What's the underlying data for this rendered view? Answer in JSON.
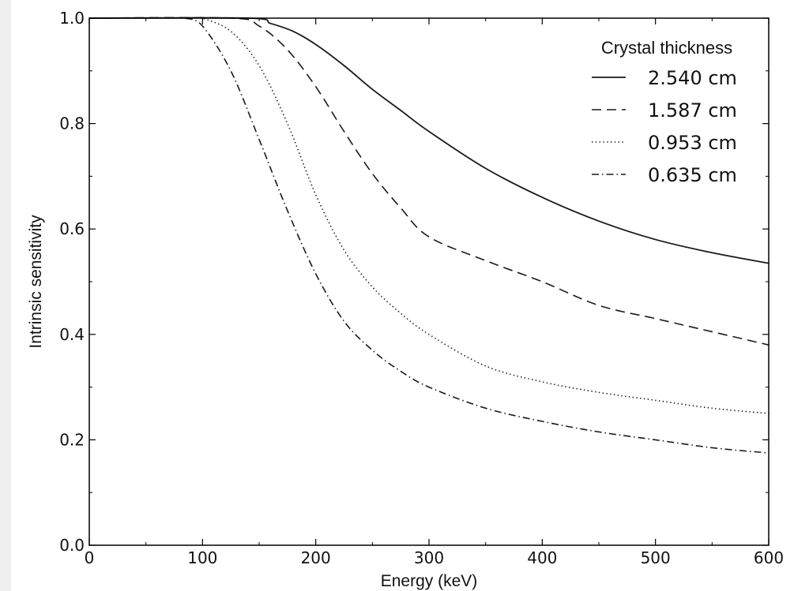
{
  "chart_data": {
    "type": "line",
    "title": "",
    "xlabel": "Energy (keV)",
    "ylabel": "Intrinsic sensitivity",
    "xlim": [
      0,
      600
    ],
    "ylim": [
      0.0,
      1.0
    ],
    "x_ticks": [
      "0",
      "100",
      "200",
      "300",
      "400",
      "500",
      "600"
    ],
    "y_ticks": [
      "0.0",
      "0.2",
      "0.4",
      "0.6",
      "0.8",
      "1.0"
    ],
    "grid": false,
    "legend": {
      "title": "Crystal thickness",
      "placement": "top-right"
    },
    "series": [
      {
        "name": "2.540 cm",
        "style": "solid",
        "x": [
          0,
          140,
          160,
          180,
          200,
          225,
          250,
          275,
          300,
          350,
          400,
          450,
          500,
          550,
          600
        ],
        "y": [
          1.0,
          1.0,
          0.99,
          0.975,
          0.95,
          0.91,
          0.865,
          0.825,
          0.785,
          0.715,
          0.66,
          0.615,
          0.58,
          0.555,
          0.535
        ]
      },
      {
        "name": "1.587 cm",
        "style": "dashed",
        "x": [
          0,
          125,
          150,
          175,
          200,
          225,
          250,
          275,
          300,
          350,
          400,
          450,
          500,
          550,
          600
        ],
        "y": [
          1.0,
          1.0,
          0.985,
          0.94,
          0.87,
          0.785,
          0.705,
          0.64,
          0.585,
          0.54,
          0.5,
          0.455,
          0.43,
          0.405,
          0.38
        ]
      },
      {
        "name": "0.953 cm",
        "style": "dotted",
        "x": [
          95,
          100,
          125,
          150,
          175,
          200,
          225,
          250,
          275,
          300,
          350,
          400,
          450,
          500,
          550,
          600
        ],
        "y": [
          1.0,
          1.0,
          0.975,
          0.91,
          0.8,
          0.665,
          0.56,
          0.49,
          0.44,
          0.4,
          0.34,
          0.31,
          0.29,
          0.275,
          0.26,
          0.25
        ]
      },
      {
        "name": "0.635 cm",
        "style": "dashdot",
        "x": [
          85,
          100,
          125,
          150,
          175,
          200,
          225,
          250,
          275,
          300,
          350,
          400,
          450,
          500,
          550,
          600
        ],
        "y": [
          1.0,
          0.985,
          0.9,
          0.77,
          0.635,
          0.515,
          0.425,
          0.37,
          0.33,
          0.3,
          0.26,
          0.235,
          0.215,
          0.2,
          0.185,
          0.175
        ]
      }
    ]
  }
}
